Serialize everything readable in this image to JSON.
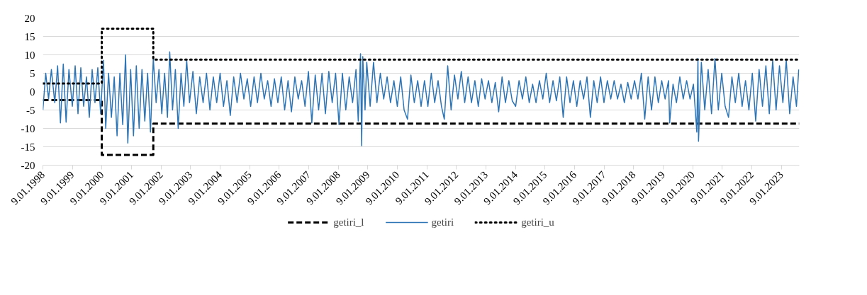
{
  "chart_data": {
    "type": "line",
    "grid": "y",
    "legend": "bottom",
    "ylim": [
      -20,
      20
    ],
    "yticks": [
      -20,
      -15,
      -10,
      -5,
      0,
      5,
      10,
      15,
      20
    ],
    "xlim": [
      "1998-01-09",
      "2023-08-18"
    ],
    "xticks": [
      {
        "value": "1998-01-09",
        "label": "9.01.1998"
      },
      {
        "value": "1999-01-09",
        "label": "9.01.1999"
      },
      {
        "value": "2000-01-09",
        "label": "9.01.2000"
      },
      {
        "value": "2001-01-09",
        "label": "9.01.2001"
      },
      {
        "value": "2002-01-09",
        "label": "9.01.2002"
      },
      {
        "value": "2003-01-09",
        "label": "9.01.2003"
      },
      {
        "value": "2004-01-09",
        "label": "9.01.2004"
      },
      {
        "value": "2005-01-09",
        "label": "9.01.2005"
      },
      {
        "value": "2006-01-09",
        "label": "9.01.2006"
      },
      {
        "value": "2007-01-09",
        "label": "9.01.2007"
      },
      {
        "value": "2008-01-09",
        "label": "9.01.2008"
      },
      {
        "value": "2009-01-09",
        "label": "9.01.2009"
      },
      {
        "value": "2010-01-09",
        "label": "9.01.2010"
      },
      {
        "value": "2011-01-09",
        "label": "9.01.2011"
      },
      {
        "value": "2012-01-09",
        "label": "9.01.2012"
      },
      {
        "value": "2013-01-09",
        "label": "9.01.2013"
      },
      {
        "value": "2014-01-09",
        "label": "9.01.2014"
      },
      {
        "value": "2015-01-09",
        "label": "9.01.2015"
      },
      {
        "value": "2016-01-09",
        "label": "9.01.2016"
      },
      {
        "value": "2017-01-09",
        "label": "9.01.2017"
      },
      {
        "value": "2018-01-09",
        "label": "9.01.2018"
      },
      {
        "value": "2019-01-09",
        "label": "9.01.2019"
      },
      {
        "value": "2020-01-09",
        "label": "9.01.2020"
      },
      {
        "value": "2021-01-09",
        "label": "9.01.2021"
      },
      {
        "value": "2022-01-09",
        "label": "9.01.2022"
      },
      {
        "value": "2023-01-09",
        "label": "9.01.2023"
      }
    ],
    "series": [
      {
        "name": "getiri_l",
        "color": "#000000",
        "line_style": "dashed",
        "x": [
          "1998-01-09",
          "2000-01-07",
          "2000-01-07",
          "2001-10-05",
          "2001-10-05",
          "2023-08-18"
        ],
        "values": [
          -2.3,
          -2.3,
          -17.2,
          -17.2,
          -8.7,
          -8.7
        ]
      },
      {
        "name": "getiri",
        "color": "#2e75b6",
        "line_style": "solid",
        "x": [
          "1998-01-09",
          "1998-02-13",
          "1998-03-20",
          "1998-04-24",
          "1998-06-05",
          "1998-07-10",
          "1998-08-14",
          "1998-09-18",
          "1998-10-23",
          "1998-11-27",
          "1999-01-08",
          "1999-02-12",
          "1999-03-19",
          "1999-04-23",
          "1999-05-28",
          "1999-07-02",
          "1999-08-06",
          "1999-09-10",
          "1999-10-15",
          "1999-11-19",
          "1999-12-24",
          "2000-01-28",
          "2000-02-25",
          "2000-03-31",
          "2000-05-05",
          "2000-06-09",
          "2000-07-14",
          "2000-08-18",
          "2000-09-22",
          "2000-10-27",
          "2000-11-24",
          "2000-12-29",
          "2001-02-02",
          "2001-03-09",
          "2001-04-13",
          "2001-05-18",
          "2001-06-22",
          "2001-07-27",
          "2001-08-31",
          "2001-10-05",
          "2001-11-09",
          "2001-12-14",
          "2002-01-18",
          "2002-02-22",
          "2002-03-29",
          "2002-04-26",
          "2002-05-31",
          "2002-07-05",
          "2002-08-09",
          "2002-09-13",
          "2002-10-18",
          "2002-11-22",
          "2002-12-27",
          "2003-02-07",
          "2003-03-21",
          "2003-05-02",
          "2003-06-13",
          "2003-07-25",
          "2003-09-05",
          "2003-10-17",
          "2003-11-28",
          "2004-01-09",
          "2004-02-20",
          "2004-04-02",
          "2004-05-14",
          "2004-06-25",
          "2004-08-06",
          "2004-09-17",
          "2004-10-29",
          "2004-12-10",
          "2005-01-21",
          "2005-03-04",
          "2005-04-15",
          "2005-05-27",
          "2005-07-08",
          "2005-08-19",
          "2005-09-30",
          "2005-11-11",
          "2005-12-23",
          "2006-02-03",
          "2006-03-17",
          "2006-04-28",
          "2006-06-09",
          "2006-07-21",
          "2006-09-01",
          "2006-10-13",
          "2006-11-24",
          "2007-01-05",
          "2007-02-16",
          "2007-03-30",
          "2007-05-11",
          "2007-06-22",
          "2007-08-03",
          "2007-09-14",
          "2007-10-26",
          "2007-12-07",
          "2008-01-18",
          "2008-02-29",
          "2008-04-11",
          "2008-05-23",
          "2008-07-04",
          "2008-08-15",
          "2008-09-12",
          "2008-10-10",
          "2008-10-24",
          "2008-11-07",
          "2008-12-05",
          "2008-12-26",
          "2009-02-06",
          "2009-03-20",
          "2009-05-01",
          "2009-06-12",
          "2009-07-24",
          "2009-09-04",
          "2009-10-16",
          "2009-11-27",
          "2010-01-08",
          "2010-02-19",
          "2010-04-02",
          "2010-05-14",
          "2010-06-25",
          "2010-08-06",
          "2010-09-17",
          "2010-10-29",
          "2010-12-10",
          "2011-01-21",
          "2011-03-04",
          "2011-04-15",
          "2011-05-27",
          "2011-07-08",
          "2011-08-12",
          "2011-09-23",
          "2011-11-04",
          "2011-12-16",
          "2012-01-27",
          "2012-03-09",
          "2012-04-20",
          "2012-06-01",
          "2012-07-13",
          "2012-08-24",
          "2012-10-05",
          "2012-11-16",
          "2012-12-28",
          "2013-02-08",
          "2013-03-22",
          "2013-05-03",
          "2013-06-14",
          "2013-07-26",
          "2013-09-06",
          "2013-10-18",
          "2013-11-29",
          "2014-01-10",
          "2014-02-21",
          "2014-04-04",
          "2014-05-16",
          "2014-06-27",
          "2014-08-08",
          "2014-09-19",
          "2014-10-31",
          "2014-12-12",
          "2015-01-23",
          "2015-03-06",
          "2015-04-17",
          "2015-05-29",
          "2015-07-10",
          "2015-08-21",
          "2015-10-02",
          "2015-11-13",
          "2015-12-25",
          "2016-02-05",
          "2016-03-18",
          "2016-04-29",
          "2016-06-10",
          "2016-07-22",
          "2016-09-02",
          "2016-10-14",
          "2016-11-25",
          "2017-01-06",
          "2017-02-17",
          "2017-03-31",
          "2017-05-12",
          "2017-06-23",
          "2017-08-04",
          "2017-09-15",
          "2017-10-27",
          "2017-12-08",
          "2018-01-19",
          "2018-03-02",
          "2018-04-13",
          "2018-05-25",
          "2018-07-06",
          "2018-08-17",
          "2018-09-28",
          "2018-11-09",
          "2018-12-21",
          "2019-02-01",
          "2019-03-15",
          "2019-03-29",
          "2019-05-10",
          "2019-06-21",
          "2019-08-02",
          "2019-09-13",
          "2019-10-25",
          "2019-12-06",
          "2020-01-17",
          "2020-02-28",
          "2020-03-13",
          "2020-03-20",
          "2020-04-24",
          "2020-06-05",
          "2020-07-17",
          "2020-08-28",
          "2020-10-09",
          "2020-11-20",
          "2021-01-01",
          "2021-02-12",
          "2021-03-26",
          "2021-05-07",
          "2021-06-18",
          "2021-07-30",
          "2021-09-10",
          "2021-10-22",
          "2021-12-03",
          "2022-01-14",
          "2022-02-25",
          "2022-04-08",
          "2022-05-20",
          "2022-07-01",
          "2022-08-12",
          "2022-09-23",
          "2022-11-04",
          "2022-12-16",
          "2023-01-27",
          "2023-03-10",
          "2023-04-21",
          "2023-06-02",
          "2023-07-14",
          "2023-08-11"
        ],
        "values": [
          -5,
          5,
          -2,
          6,
          -3,
          7,
          -8.5,
          7.5,
          -8.3,
          6,
          -4,
          7,
          -6,
          6.5,
          -4,
          4,
          -7,
          6,
          -3,
          6.5,
          -6,
          8.5,
          -10,
          5,
          -7,
          4,
          -12,
          5,
          -9,
          10,
          -14,
          6,
          -12,
          7,
          -10,
          6,
          -8,
          5,
          -11,
          9,
          -3,
          6,
          -6,
          5,
          -7,
          10.8,
          -5,
          6,
          -10,
          5,
          -4,
          8.5,
          -3,
          5.5,
          -6,
          4,
          -3,
          5,
          -5,
          4,
          -3,
          5,
          -4,
          3,
          -6.5,
          4,
          -3,
          5,
          -2,
          3.5,
          -4,
          4,
          -3,
          5,
          -2,
          3,
          -4,
          3.5,
          -3,
          4,
          -5,
          3,
          -5.5,
          4,
          -2,
          3,
          -4,
          5.5,
          -8.5,
          4.5,
          -5,
          5,
          -6,
          5.5,
          -3,
          5,
          -9,
          5,
          -5,
          4,
          -3,
          6,
          -8,
          10.3,
          -14.7,
          9.5,
          -5,
          8,
          -4,
          8,
          -3,
          5,
          -2,
          4,
          -3,
          3,
          -4,
          4,
          -5,
          -7.5,
          4.5,
          -3,
          3,
          -4,
          3,
          -4,
          5,
          -3,
          3,
          -4,
          -7.5,
          7,
          -5,
          4.5,
          -2,
          5.5,
          -3,
          4,
          -3,
          3,
          -4,
          3.5,
          -2,
          3,
          -3,
          2.5,
          -5.5,
          4,
          -3,
          3,
          -2.5,
          -4,
          3,
          -2,
          4,
          -3,
          2,
          -3,
          3,
          -2,
          5,
          -3,
          3,
          -2.5,
          4,
          -7,
          4,
          -3,
          3,
          -4,
          3,
          -2,
          4,
          -7,
          3,
          -3,
          4,
          -3,
          3,
          -2,
          3,
          -2,
          2,
          -3,
          2.5,
          -2,
          3,
          -2,
          5,
          -7.5,
          4,
          -5,
          4,
          -3,
          3,
          -2,
          3,
          -8.5,
          2,
          -3,
          4,
          -2,
          3,
          -2,
          2,
          -11,
          9,
          -13.5,
          8,
          -5,
          6,
          -6,
          9,
          -5,
          5,
          -4,
          -7,
          4,
          -3,
          5,
          -4,
          3,
          -5,
          5,
          -8,
          6,
          -4,
          7,
          -6,
          8.5,
          -5,
          7,
          -3,
          8.5,
          -6,
          4,
          -4,
          6
        ]
      },
      {
        "name": "getiri_u",
        "color": "#000000",
        "line_style": "dotted",
        "x": [
          "1998-01-09",
          "2000-01-07",
          "2000-01-07",
          "2001-10-05",
          "2001-10-05",
          "2023-08-18"
        ],
        "values": [
          2.2,
          2.2,
          17.1,
          17.1,
          8.7,
          8.7
        ]
      }
    ]
  }
}
